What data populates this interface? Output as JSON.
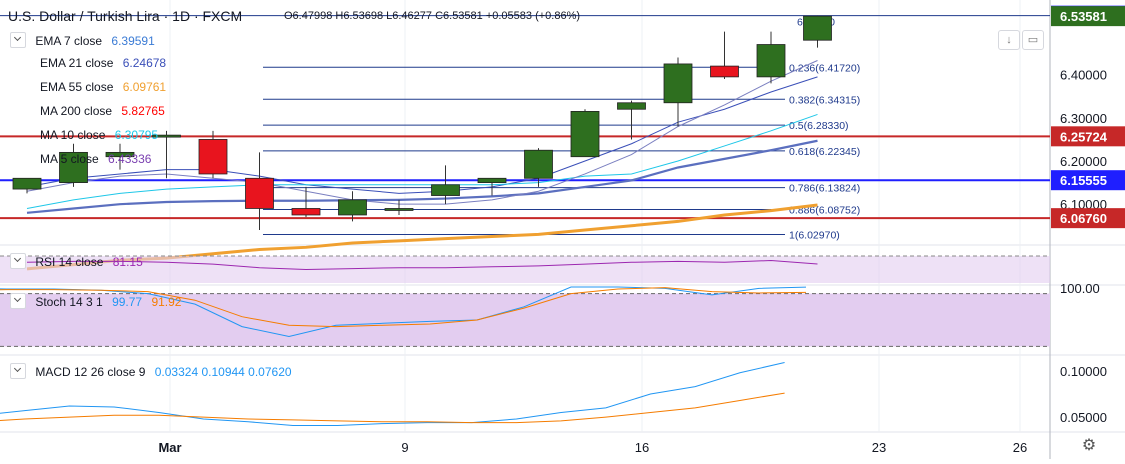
{
  "header": {
    "title": "U.S. Dollar / Turkish Lira · 1D · FXCM",
    "ohlc": "O6.47998 H6.53698 L6.46277 C6.53581 +0.05583 (+0.86%)"
  },
  "colors": {
    "up": "#2e6f1f",
    "down": "#e8141e",
    "ema7": "#3a4fb8",
    "ema21": "#5b6fbf",
    "ema55": "#f0a030",
    "ma200": "#ff0000",
    "ma10": "#1ec7e8",
    "ma5": "#7a7fc0",
    "fib": "#1f3a8c",
    "hline": "#c62828",
    "rsi": "#9c27b0",
    "stochK": "#2196f3",
    "stochD": "#f57c00",
    "macd": "#2196f3",
    "signal": "#f57c00",
    "band": "#e3cdf0"
  },
  "legend": [
    {
      "label": "EMA 7 close",
      "value": "6.39591",
      "color": "#3a4fb8"
    },
    {
      "label": "EMA 21 close",
      "value": "6.24678",
      "color": "#3a4fb8"
    },
    {
      "label": "EMA 55 close",
      "value": "6.09761",
      "color": "#f0a030"
    },
    {
      "label": "MA 200 close",
      "value": "5.82765",
      "color": "#ff0000"
    },
    {
      "label": "MA 10 close",
      "value": "6.30795",
      "color": "#1ec7e8"
    },
    {
      "label": "MA 5 close",
      "value": "6.43336",
      "color": "#7a7fc0"
    }
  ],
  "chart_data": [
    {
      "type": "candlestick",
      "title": "U.S. Dollar / Turkish Lira",
      "x_labels": [
        "Mar",
        "9",
        "16",
        "23",
        "26"
      ],
      "y_ticks": [
        "6.40000",
        "6.30000",
        "6.20000",
        "6.10000"
      ],
      "ylim": [
        6.01,
        6.55
      ],
      "candles": [
        {
          "o": 6.135,
          "h": 6.16,
          "l": 6.125,
          "c": 6.16
        },
        {
          "o": 6.15,
          "h": 6.24,
          "l": 6.14,
          "c": 6.22
        },
        {
          "o": 6.21,
          "h": 6.24,
          "l": 6.18,
          "c": 6.22
        },
        {
          "o": 6.26,
          "h": 6.27,
          "l": 6.16,
          "c": 6.26
        },
        {
          "o": 6.25,
          "h": 6.27,
          "l": 6.16,
          "c": 6.17
        },
        {
          "o": 6.16,
          "h": 6.22,
          "l": 6.04,
          "c": 6.09
        },
        {
          "o": 6.09,
          "h": 6.14,
          "l": 6.07,
          "c": 6.075
        },
        {
          "o": 6.075,
          "h": 6.13,
          "l": 6.06,
          "c": 6.11
        },
        {
          "o": 6.09,
          "h": 6.11,
          "l": 6.075,
          "c": 6.09
        },
        {
          "o": 6.12,
          "h": 6.19,
          "l": 6.1,
          "c": 6.145
        },
        {
          "o": 6.15,
          "h": 6.16,
          "l": 6.12,
          "c": 6.16
        },
        {
          "o": 6.16,
          "h": 6.23,
          "l": 6.14,
          "c": 6.225
        },
        {
          "o": 6.21,
          "h": 6.32,
          "l": 6.21,
          "c": 6.315
        },
        {
          "o": 6.32,
          "h": 6.34,
          "l": 6.25,
          "c": 6.335
        },
        {
          "o": 6.335,
          "h": 6.44,
          "l": 6.28,
          "c": 6.425
        },
        {
          "o": 6.42,
          "h": 6.5,
          "l": 6.39,
          "c": 6.395
        },
        {
          "o": 6.395,
          "h": 6.5,
          "l": 6.38,
          "c": 6.47
        },
        {
          "o": 6.47998,
          "h": 6.53698,
          "l": 6.46277,
          "c": 6.53581
        }
      ],
      "moving_averages": [
        {
          "name": "EMA 7 close",
          "values": [
            6.14,
            6.16,
            6.17,
            6.18,
            6.18,
            6.165,
            6.145,
            6.135,
            6.125,
            6.13,
            6.14,
            6.16,
            6.2,
            6.24,
            6.29,
            6.32,
            6.36,
            6.395
          ]
        },
        {
          "name": "EMA 21 close",
          "values": [
            6.08,
            6.09,
            6.1,
            6.105,
            6.107,
            6.108,
            6.108,
            6.109,
            6.11,
            6.113,
            6.118,
            6.125,
            6.14,
            6.155,
            6.185,
            6.205,
            6.225,
            6.247
          ]
        },
        {
          "name": "EMA 55 close",
          "values": [
            5.95,
            5.96,
            5.97,
            5.975,
            5.985,
            5.995,
            6.0,
            6.01,
            6.015,
            6.02,
            6.025,
            6.03,
            6.04,
            6.05,
            6.06,
            6.075,
            6.085,
            6.098
          ]
        },
        {
          "name": "MA 10 close",
          "values": [
            6.09,
            6.11,
            6.125,
            6.135,
            6.14,
            6.145,
            6.145,
            6.145,
            6.145,
            6.145,
            6.145,
            6.15,
            6.165,
            6.17,
            6.2,
            6.235,
            6.27,
            6.308
          ]
        },
        {
          "name": "MA 5 close",
          "values": [
            6.13,
            6.15,
            6.165,
            6.17,
            6.16,
            6.15,
            6.13,
            6.11,
            6.1,
            6.1,
            6.11,
            6.13,
            6.17,
            6.215,
            6.28,
            6.33,
            6.385,
            6.433
          ]
        }
      ],
      "fib_levels": [
        {
          "label": "0.236(6.41720)",
          "value": 6.4172
        },
        {
          "label": "0.382(6.34315)",
          "value": 6.34315
        },
        {
          "label": "0.5(6.28330)",
          "value": 6.2833
        },
        {
          "label": "0.618(6.22345)",
          "value": 6.22345
        },
        {
          "label": "0.786(6.13824)",
          "value": 6.13824
        },
        {
          "label": "0.886(6.08752)",
          "value": 6.08752
        },
        {
          "label": "1(6.02970)",
          "value": 6.0297
        }
      ],
      "fib_top_label": "6.53690",
      "price_marks": [
        {
          "label": "6.53690",
          "value": 6.5369,
          "color": "#1f1fff"
        },
        {
          "label": "6.53581",
          "value": 6.53581,
          "color": "#2e6f1f"
        },
        {
          "label": "6.25724",
          "value": 6.25724,
          "color": "#c62828"
        },
        {
          "label": "6.15555",
          "value": 6.15555,
          "color": "#1f1fff"
        },
        {
          "label": "6.06760",
          "value": 6.0676,
          "color": "#c62828"
        }
      ],
      "horizontal_lines": [
        {
          "value": 6.25724,
          "color": "#c62828"
        },
        {
          "value": 6.15555,
          "color": "#1f1fff"
        },
        {
          "value": 6.0676,
          "color": "#c62828"
        }
      ]
    },
    {
      "type": "line",
      "title": "RSI 14 close",
      "values_label": "81.15",
      "band": [
        30,
        70
      ],
      "series": [
        {
          "name": "RSI 14 close",
          "values": [
            83,
            84,
            84,
            83,
            81,
            77,
            75,
            76,
            77,
            77,
            78,
            79,
            81,
            83,
            84,
            83,
            85,
            81.15
          ]
        }
      ]
    },
    {
      "type": "line",
      "title": "Stoch 14 3 1",
      "ylabel": "100.00",
      "values_label_k": "99.77",
      "values_label_d": "91.92",
      "band": [
        20,
        80
      ],
      "series": [
        {
          "name": "%K",
          "values": [
            98,
            97,
            97,
            95,
            90,
            74,
            40,
            25,
            42,
            45,
            48,
            50,
            70,
            100,
            100,
            98,
            88,
            98,
            99.77
          ]
        },
        {
          "name": "%D",
          "values": [
            95,
            96,
            96,
            95,
            93,
            80,
            55,
            42,
            40,
            42,
            44,
            50,
            68,
            90,
            97,
            99,
            93,
            91,
            91.92
          ]
        }
      ]
    },
    {
      "type": "line",
      "title": "MACD 12 26 close 9",
      "values_label": "0.03324  0.10944  0.07620",
      "y_ticks": [
        "0.10000",
        "0.05000"
      ],
      "series": [
        {
          "name": "MACD",
          "values": [
            0.052,
            0.057,
            0.062,
            0.061,
            0.055,
            0.048,
            0.045,
            0.041,
            0.041,
            0.043,
            0.044,
            0.044,
            0.048,
            0.055,
            0.06,
            0.075,
            0.083,
            0.098,
            0.109
          ]
        },
        {
          "name": "Signal",
          "values": [
            0.045,
            0.048,
            0.05,
            0.052,
            0.052,
            0.05,
            0.048,
            0.047,
            0.046,
            0.045,
            0.045,
            0.044,
            0.044,
            0.046,
            0.05,
            0.055,
            0.06,
            0.068,
            0.076
          ]
        }
      ]
    }
  ]
}
